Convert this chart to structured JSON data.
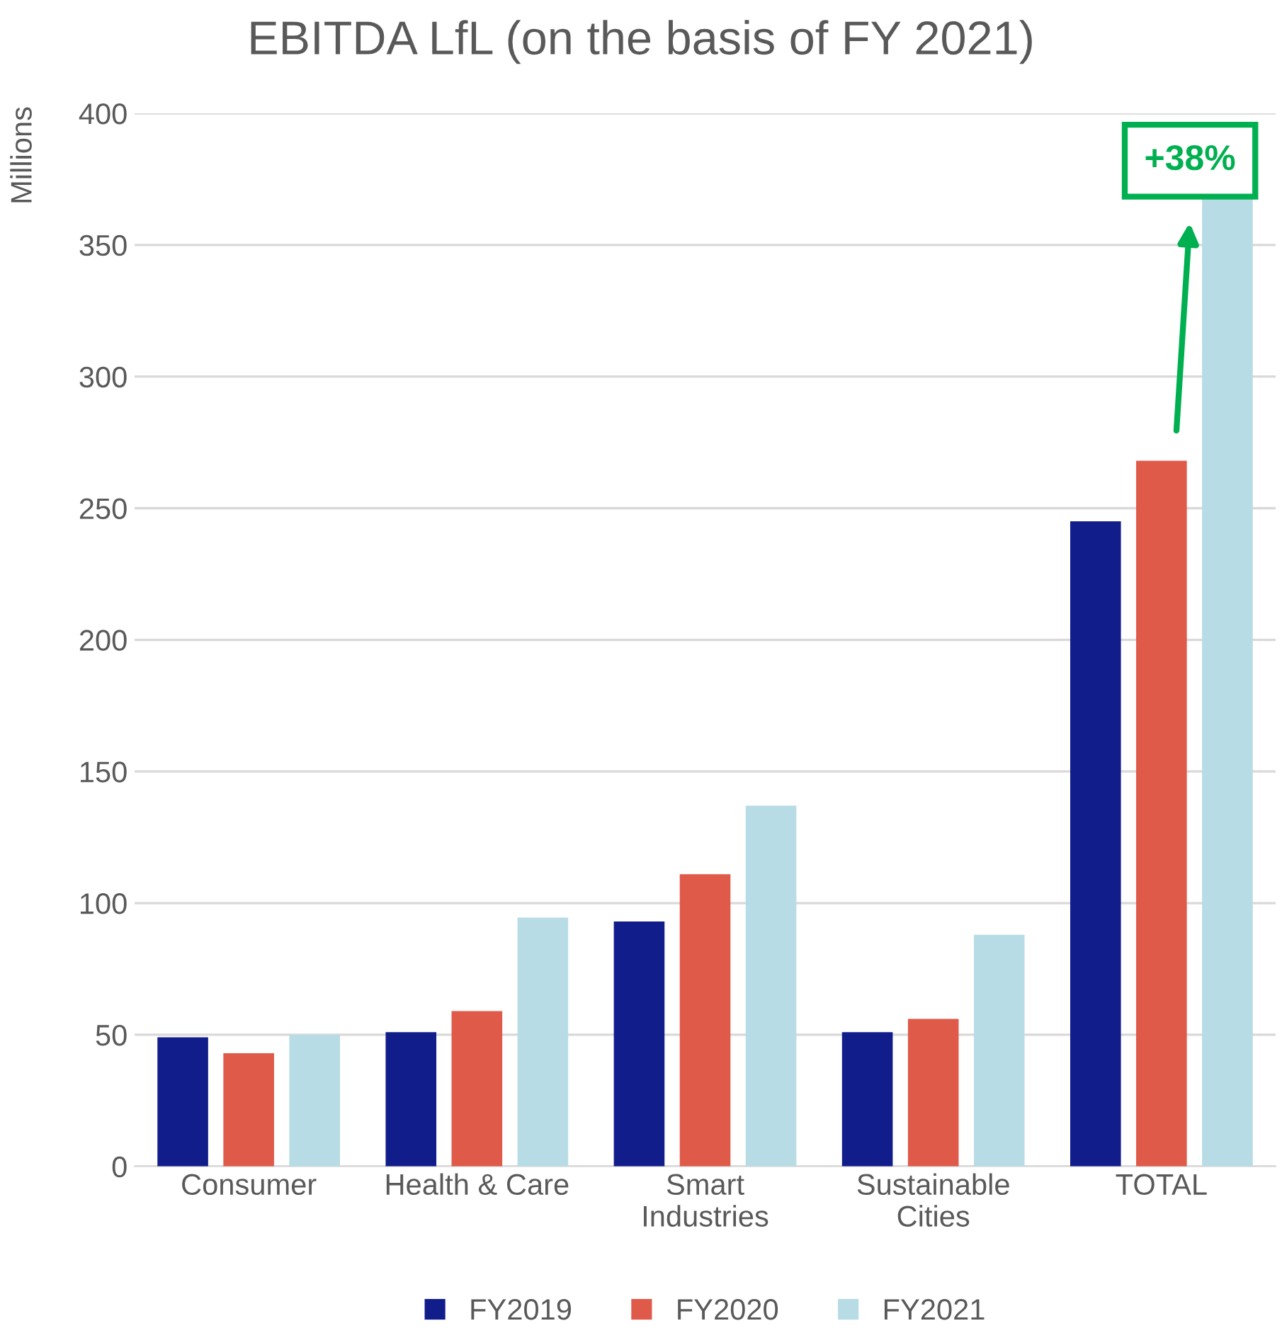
{
  "chart_data": {
    "type": "bar",
    "title": "EBITDA LfL (on the basis of FY 2021)",
    "ylabel": "Millions",
    "categories": [
      "Consumer",
      "Health & Care",
      "Smart Industries",
      "Sustainable Cities",
      "TOTAL"
    ],
    "series": [
      {
        "name": "FY2019",
        "color": "#121d8c",
        "values": [
          49,
          51,
          93,
          51,
          245
        ]
      },
      {
        "name": "FY2020",
        "color": "#e05a4a",
        "values": [
          43,
          59,
          111,
          56,
          268
        ]
      },
      {
        "name": "FY2021",
        "color": "#b8dce6",
        "values": [
          50,
          94.5,
          137,
          88,
          368
        ]
      }
    ],
    "ylim": [
      0,
      400
    ],
    "yticks": [
      0,
      50,
      100,
      150,
      200,
      250,
      300,
      350,
      400
    ],
    "grid": "y",
    "legend": "bottom",
    "annotations": [
      "+38%"
    ]
  }
}
